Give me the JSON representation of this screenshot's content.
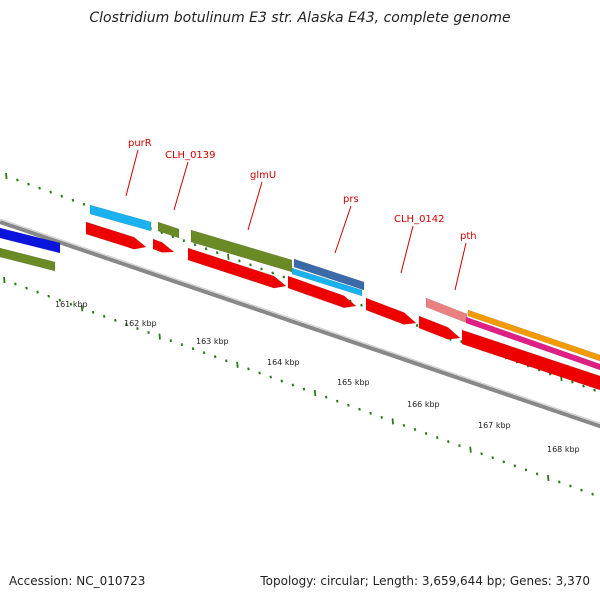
{
  "title": "Clostridium botulinum E3 str. Alaska E43, complete genome",
  "footer": {
    "accession": "Accession: NC_010723",
    "summary": "Topology: circular; Length: 3,659,644 bp; Genes: 3,370"
  },
  "colors": {
    "backbone": "#888888",
    "tick": "#2a7a1a",
    "label": "#cc0000",
    "cds_forward_red": "#ee0000",
    "sky_blue": "#1ab2ee",
    "olive": "#6a8a26",
    "blue": "#0a14dd",
    "steel_blue": "#3a6aa8",
    "pink": "#ea8080",
    "orange": "#f29a00",
    "magenta": "#e01f85"
  },
  "gene_labels": [
    "purR",
    "CLH_0139",
    "glmU",
    "prs",
    "CLH_0142",
    "pth"
  ],
  "tick_labels": [
    "161 kbp",
    "162 kbp",
    "163 kbp",
    "164 kbp",
    "165 kbp",
    "166 kbp",
    "167 kbp",
    "168 kbp"
  ]
}
